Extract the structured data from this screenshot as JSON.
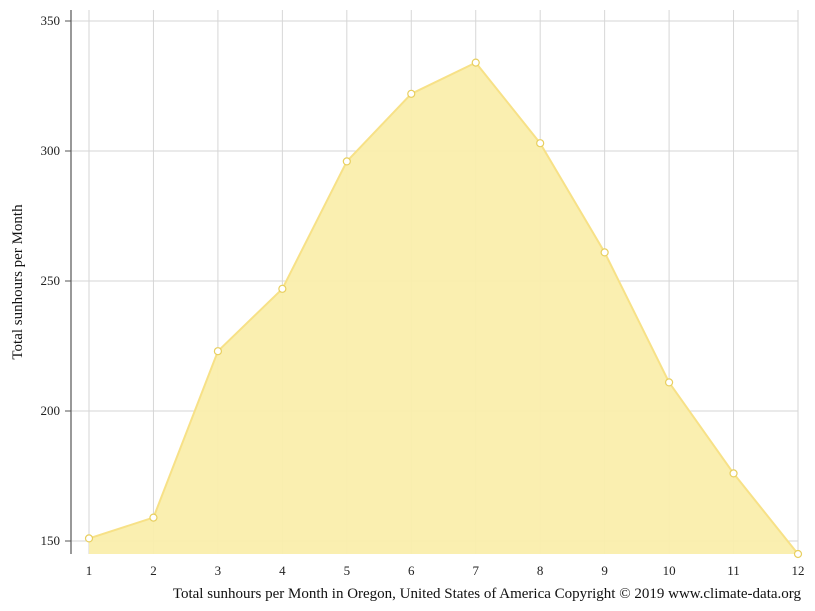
{
  "chart_data": {
    "type": "area",
    "x": [
      1,
      2,
      3,
      4,
      5,
      6,
      7,
      8,
      9,
      10,
      11,
      12
    ],
    "x_tick_labels": [
      "1",
      "2",
      "3",
      "4",
      "5",
      "6",
      "7",
      "8",
      "9",
      "10",
      "11",
      "12"
    ],
    "series": [
      {
        "values": [
          151,
          159,
          223,
          247,
          296,
          322,
          334,
          303,
          261,
          211,
          176,
          145
        ]
      }
    ],
    "ylabel": "Total sunhours per Month",
    "caption": "Total sunhours per Month in Oregon, United States of America Copyright © 2019 www.climate-data.org",
    "y_ticks": [
      150,
      200,
      250,
      300,
      350
    ],
    "ylim": [
      145,
      353
    ],
    "xlim": [
      1,
      12
    ],
    "grid": true,
    "colors": {
      "fill": "#faeeac",
      "line": "#f7e187",
      "point_stroke": "#e8cf5f",
      "grid": "#d6d6d6",
      "axis": "#555555"
    }
  }
}
